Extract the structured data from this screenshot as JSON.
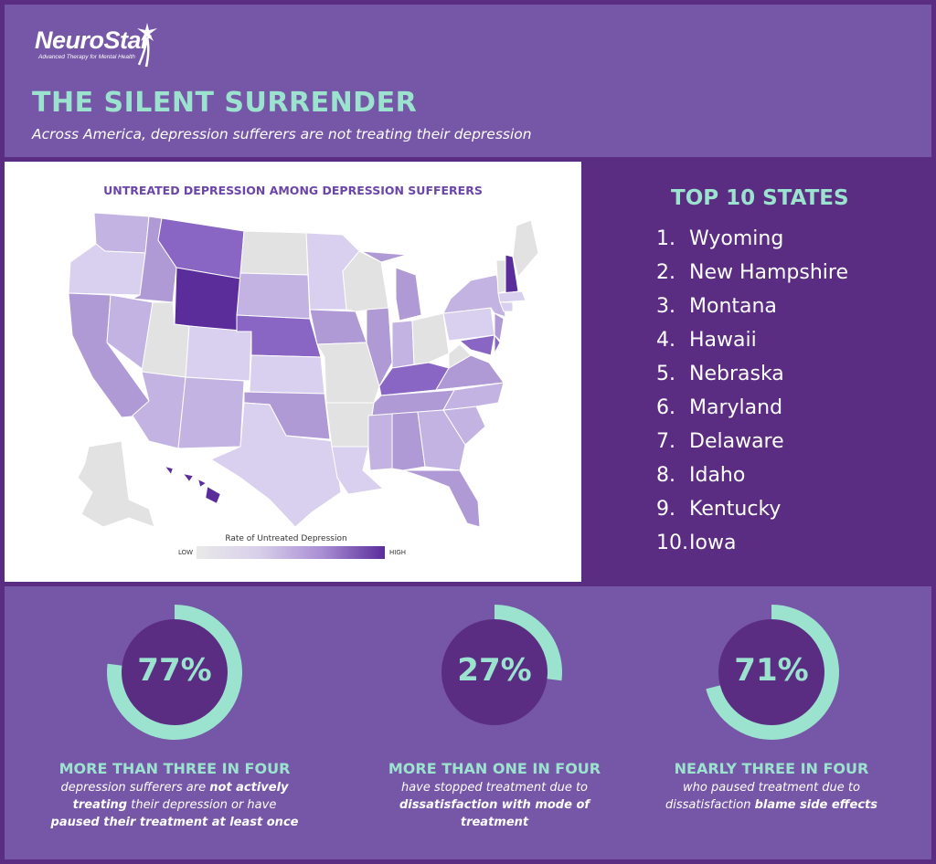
{
  "header": {
    "logo_word": "NeuroStar",
    "logo_tagline": "Advanced Therapy for Mental Health",
    "title": "THE SILENT SURRENDER",
    "subtitle": "Across America, depression sufferers are not treating their depression"
  },
  "map": {
    "title": "UNTREATED DEPRESSION AMONG DEPRESSION SUFFERERS",
    "legend_label": "Rate of Untreated Depression",
    "legend_low": "LOW",
    "legend_high": "HIGH",
    "colors": {
      "none": "#e2e2e2",
      "low": "#d9cfee",
      "mid": "#c3b3e2",
      "midhigh": "#b09ad6",
      "high": "#8a66c4",
      "top": "#5a2d9a"
    }
  },
  "top10": {
    "title": "TOP 10 STATES",
    "items": [
      {
        "rank": "1.",
        "name": "Wyoming"
      },
      {
        "rank": "2.",
        "name": "New Hampshire"
      },
      {
        "rank": "3.",
        "name": "Montana"
      },
      {
        "rank": "4.",
        "name": "Hawaii"
      },
      {
        "rank": "5.",
        "name": "Nebraska"
      },
      {
        "rank": "6.",
        "name": "Maryland"
      },
      {
        "rank": "7.",
        "name": "Delaware"
      },
      {
        "rank": "8.",
        "name": "Idaho"
      },
      {
        "rank": "9.",
        "name": "Kentucky"
      },
      {
        "rank": "10.",
        "name": "Iowa"
      }
    ]
  },
  "stats": [
    {
      "value": "77%",
      "fraction": 0.77,
      "heading": "MORE THAN THREE IN FOUR",
      "line1_a": "depression sufferers are ",
      "line1_b": "not actively",
      "line2_a": "treating",
      "line2_b": " their depression or have",
      "line3_a": "paused their treatment at least once"
    },
    {
      "value": "27%",
      "fraction": 0.27,
      "heading": "MORE THAN ONE IN FOUR",
      "line1_a": "have stopped treatment due to",
      "line2_a": "dissatisfaction with mode of",
      "line3_a": "treatment"
    },
    {
      "value": "71%",
      "fraction": 0.71,
      "heading": "NEARLY THREE IN FOUR",
      "line1_a": "who paused treatment due to",
      "line2_a": "dissatisfaction ",
      "line2_b": "blame side effects"
    }
  ],
  "theme": {
    "ring": "#9be3cf",
    "disc": "#5a2d82",
    "accent_text": "#9be3cf"
  }
}
